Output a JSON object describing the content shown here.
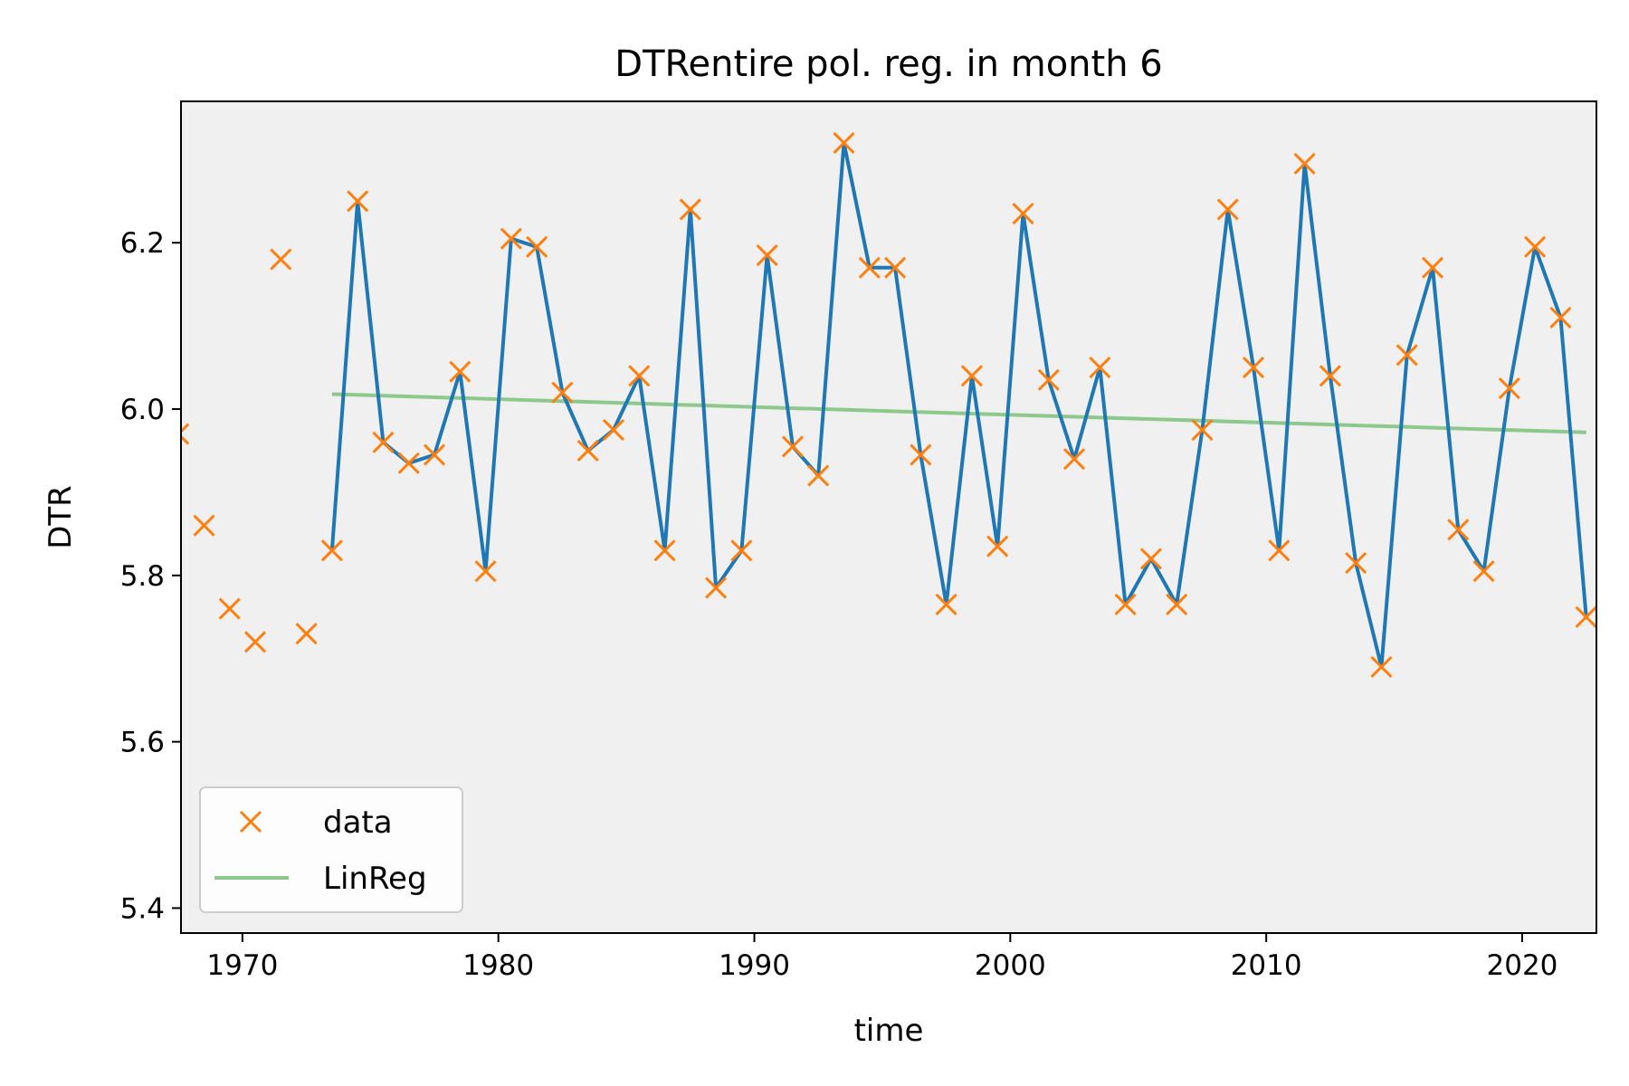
{
  "chart_data": {
    "type": "line",
    "title": "DTRentire pol. reg. in month 6",
    "xlabel": "time",
    "ylabel": "DTR",
    "xlim": [
      1967.6,
      2022.9
    ],
    "ylim": [
      5.37,
      6.37
    ],
    "xticks": [
      1970,
      1980,
      1990,
      2000,
      2010,
      2020
    ],
    "yticks": [
      5.4,
      5.6,
      5.8,
      6.0,
      6.2
    ],
    "ytick_labels": [
      "5.4",
      "5.6",
      "5.8",
      "6.0",
      "6.2"
    ],
    "grid": false,
    "legend_position": "lower left",
    "legend": [
      {
        "name": "data",
        "marker": "x",
        "color": "#ff7f0e"
      },
      {
        "name": "LinReg",
        "color": "#8dc98d"
      }
    ],
    "series": [
      {
        "name": "data",
        "style": "markers",
        "color": "#ff7f0e",
        "x": [
          1967.5,
          1968.5,
          1969.5,
          1970.5,
          1971.5,
          1972.5,
          1973.5,
          1974.5,
          1975.5,
          1976.5,
          1977.5,
          1978.5,
          1979.5,
          1980.5,
          1981.5,
          1982.5,
          1983.5,
          1984.5,
          1985.5,
          1986.5,
          1987.5,
          1988.5,
          1989.5,
          1990.5,
          1991.5,
          1992.5,
          1993.5,
          1994.5,
          1995.5,
          1996.5,
          1997.5,
          1998.5,
          1999.5,
          2000.5,
          2001.5,
          2002.5,
          2003.5,
          2004.5,
          2005.5,
          2006.5,
          2007.5,
          2008.5,
          2009.5,
          2010.5,
          2011.5,
          2012.5,
          2013.5,
          2014.5,
          2015.5,
          2016.5,
          2017.5,
          2018.5,
          2019.5,
          2020.5,
          2021.5,
          2022.5
        ],
        "y": [
          5.97,
          5.86,
          5.76,
          5.72,
          6.18,
          5.73,
          5.83,
          6.25,
          5.96,
          5.935,
          5.945,
          6.045,
          5.805,
          6.205,
          6.195,
          6.02,
          5.95,
          5.975,
          6.04,
          5.83,
          6.24,
          5.785,
          5.83,
          6.185,
          5.955,
          5.92,
          6.32,
          6.17,
          6.17,
          5.945,
          5.765,
          6.04,
          5.835,
          6.235,
          6.035,
          5.94,
          6.05,
          5.765,
          5.82,
          5.765,
          5.975,
          6.24,
          6.05,
          5.83,
          6.295,
          6.04,
          5.815,
          5.69,
          6.065,
          6.17,
          5.855,
          5.805,
          6.025,
          6.195,
          6.11,
          5.75
        ]
      },
      {
        "name": "line",
        "style": "line",
        "color": "#1f77b4",
        "x": [
          1973.5,
          1974.5,
          1975.5,
          1976.5,
          1977.5,
          1978.5,
          1979.5,
          1980.5,
          1981.5,
          1982.5,
          1983.5,
          1984.5,
          1985.5,
          1986.5,
          1987.5,
          1988.5,
          1989.5,
          1990.5,
          1991.5,
          1992.5,
          1993.5,
          1994.5,
          1995.5,
          1996.5,
          1997.5,
          1998.5,
          1999.5,
          2000.5,
          2001.5,
          2002.5,
          2003.5,
          2004.5,
          2005.5,
          2006.5,
          2007.5,
          2008.5,
          2009.5,
          2010.5,
          2011.5,
          2012.5,
          2013.5,
          2014.5,
          2015.5,
          2016.5,
          2017.5,
          2018.5,
          2019.5,
          2020.5,
          2021.5,
          2022.5
        ],
        "y": [
          5.83,
          6.25,
          5.96,
          5.935,
          5.945,
          6.045,
          5.805,
          6.205,
          6.195,
          6.02,
          5.95,
          5.975,
          6.04,
          5.83,
          6.24,
          5.785,
          5.83,
          6.185,
          5.955,
          5.92,
          6.32,
          6.17,
          6.17,
          5.945,
          5.765,
          6.04,
          5.835,
          6.235,
          6.035,
          5.94,
          6.05,
          5.765,
          5.82,
          5.765,
          5.975,
          6.24,
          6.05,
          5.83,
          6.295,
          6.04,
          5.815,
          5.69,
          6.065,
          6.17,
          5.855,
          5.805,
          6.025,
          6.195,
          6.11,
          5.75
        ]
      },
      {
        "name": "LinReg",
        "style": "line",
        "color": "#8dc98d",
        "x": [
          1973.5,
          2022.5
        ],
        "y": [
          6.018,
          5.972
        ]
      }
    ]
  }
}
